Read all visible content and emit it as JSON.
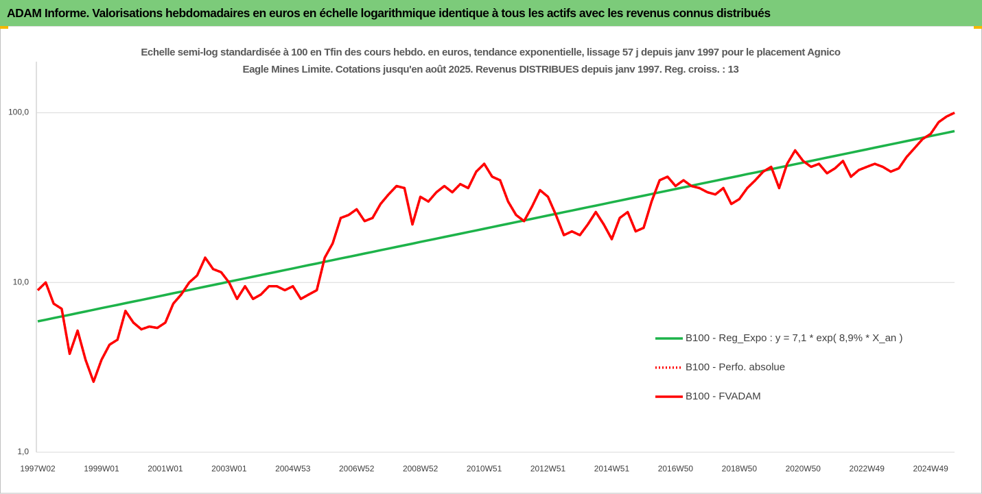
{
  "chart_data": {
    "type": "line",
    "title": "ADAM Informe. Valorisations hebdomadaires en euros en échelle logarithmique identique à tous les actifs avec les revenus connus distribués",
    "subtitle": "Echelle semi-log standardisée à 100 en Tfin des cours hebdo. en euros, tendance exponentielle, lissage 57 j depuis janv 1997 pour le placement Agnico Eagle Mines Limite. Cotations jusqu'en août 2025. Revenus DISTRIBUES depuis janv 1997. Reg. croiss. : 13",
    "log_scale": true,
    "grid": true,
    "legend": "right",
    "ylim": [
      1,
      200
    ],
    "yticks": [
      {
        "value": 1,
        "label": "1,0"
      },
      {
        "value": 10,
        "label": "10,0"
      },
      {
        "value": 100,
        "label": "100,0"
      }
    ],
    "categories": [
      "1997W02",
      null,
      null,
      null,
      null,
      null,
      null,
      null,
      "1999W01",
      null,
      null,
      null,
      null,
      null,
      null,
      null,
      "2001W01",
      null,
      null,
      null,
      null,
      null,
      null,
      null,
      "2003W01",
      null,
      null,
      null,
      null,
      null,
      null,
      null,
      "2004W53",
      null,
      null,
      null,
      null,
      null,
      null,
      null,
      "2006W52",
      null,
      null,
      null,
      null,
      null,
      null,
      null,
      "2008W52",
      null,
      null,
      null,
      null,
      null,
      null,
      null,
      "2010W51",
      null,
      null,
      null,
      null,
      null,
      null,
      null,
      "2012W51",
      null,
      null,
      null,
      null,
      null,
      null,
      null,
      "2014W51",
      null,
      null,
      null,
      null,
      null,
      null,
      null,
      "2016W50",
      null,
      null,
      null,
      null,
      null,
      null,
      null,
      "2018W50",
      null,
      null,
      null,
      null,
      null,
      null,
      null,
      "2020W50",
      null,
      null,
      null,
      null,
      null,
      null,
      null,
      "2022W49",
      null,
      null,
      null,
      null,
      null,
      null,
      null,
      "2024W49",
      null,
      null,
      null
    ],
    "series": [
      {
        "name": "B100 - Reg_Expo : y = 7,1 * exp( 8,9% *  X_an )",
        "color": "#1db34a",
        "dash": "solid",
        "values": [
          5.9,
          6.03,
          6.17,
          6.31,
          6.45,
          6.6,
          6.75,
          6.9,
          7.06,
          7.22,
          7.38,
          7.55,
          7.72,
          7.89,
          8.07,
          8.26,
          8.44,
          8.64,
          8.83,
          9.03,
          9.24,
          9.45,
          9.66,
          9.88,
          10.11,
          10.34,
          10.57,
          10.81,
          11.06,
          11.31,
          11.57,
          11.83,
          12.1,
          12.38,
          12.66,
          12.94,
          13.24,
          13.54,
          13.85,
          14.16,
          14.48,
          14.81,
          15.14,
          15.49,
          15.84,
          16.2,
          16.57,
          16.94,
          17.33,
          17.72,
          18.12,
          18.53,
          18.95,
          19.38,
          19.82,
          20.27,
          20.73,
          21.2,
          21.69,
          22.18,
          22.68,
          23.19,
          23.72,
          24.26,
          24.81,
          25.37,
          25.95,
          26.54,
          27.14,
          27.76,
          28.38,
          29.02,
          29.68,
          30.36,
          31.05,
          31.75,
          32.47,
          33.21,
          33.97,
          34.73,
          35.53,
          36.34,
          37.16,
          38.01,
          38.87,
          39.75,
          40.65,
          41.58,
          42.52,
          43.49,
          44.46,
          45.47,
          46.5,
          47.56,
          48.64,
          49.74,
          50.87,
          52.03,
          53.21,
          54.42,
          55.65,
          56.91,
          58.2,
          59.53,
          60.88,
          62.26,
          63.68,
          65.12,
          66.6,
          68.11,
          69.65,
          71.23,
          72.85,
          74.5,
          76.2,
          77.93
        ]
      },
      {
        "name": "B100 - Perfo. absolue",
        "color": "#ff0000",
        "dash": "dotted",
        "values": [
          9,
          10,
          7.5,
          7,
          3.8,
          5.2,
          3.5,
          2.6,
          3.5,
          4.3,
          4.6,
          6.8,
          5.8,
          5.3,
          5.5,
          5.4,
          5.8,
          7.5,
          8.5,
          10,
          11,
          14,
          12,
          11.5,
          10,
          8,
          9.5,
          8,
          8.5,
          9.5,
          9.5,
          9,
          9.5,
          8,
          8.5,
          9,
          14,
          17,
          24,
          25,
          27,
          23,
          24,
          29,
          33,
          37,
          36,
          22,
          32,
          30,
          34,
          37,
          34,
          38,
          36,
          45,
          50,
          42,
          40,
          30,
          25,
          23,
          28,
          35,
          32,
          25,
          19,
          20,
          19,
          22,
          26,
          22,
          18,
          24,
          26,
          20,
          21,
          30,
          40,
          42,
          37,
          40,
          37,
          36,
          34,
          33,
          36,
          29,
          31,
          36,
          40,
          45,
          48,
          36,
          50,
          60,
          52,
          48,
          50,
          44,
          47,
          52,
          42,
          46,
          48,
          50,
          48,
          45,
          47,
          55,
          62,
          70,
          75,
          88,
          95,
          100
        ]
      },
      {
        "name": "B100 - FVADAM",
        "color": "#ff0000",
        "dash": "solid",
        "values": [
          9,
          10,
          7.5,
          7,
          3.8,
          5.2,
          3.5,
          2.6,
          3.5,
          4.3,
          4.6,
          6.8,
          5.8,
          5.3,
          5.5,
          5.4,
          5.8,
          7.5,
          8.5,
          10,
          11,
          14,
          12,
          11.5,
          10,
          8,
          9.5,
          8,
          8.5,
          9.5,
          9.5,
          9,
          9.5,
          8,
          8.5,
          9,
          14,
          17,
          24,
          25,
          27,
          23,
          24,
          29,
          33,
          37,
          36,
          22,
          32,
          30,
          34,
          37,
          34,
          38,
          36,
          45,
          50,
          42,
          40,
          30,
          25,
          23,
          28,
          35,
          32,
          25,
          19,
          20,
          19,
          22,
          26,
          22,
          18,
          24,
          26,
          20,
          21,
          30,
          40,
          42,
          37,
          40,
          37,
          36,
          34,
          33,
          36,
          29,
          31,
          36,
          40,
          45,
          48,
          36,
          50,
          60,
          52,
          48,
          50,
          44,
          47,
          52,
          42,
          46,
          48,
          50,
          48,
          45,
          47,
          55,
          62,
          70,
          75,
          88,
          95,
          100
        ]
      }
    ]
  }
}
